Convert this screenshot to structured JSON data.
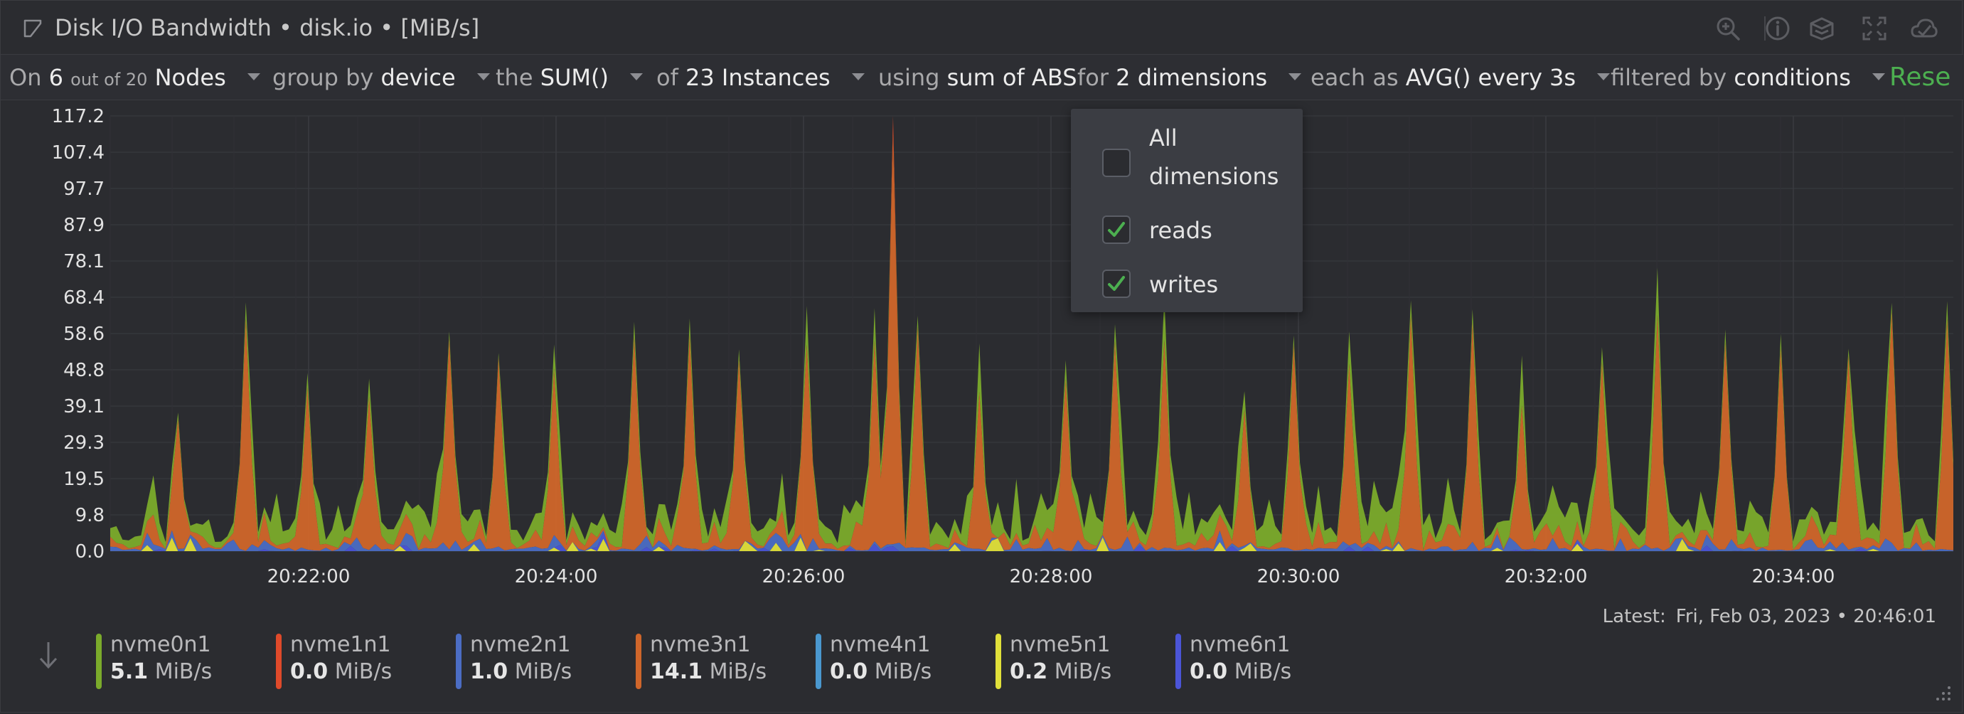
{
  "header": {
    "title": "Disk I/O Bandwidth • disk.io • [MiB/s]",
    "icons": [
      "chart-type-icon",
      "zoom-icon",
      "info-icon",
      "layers-icon",
      "fullscreen-icon",
      "cloud-icon"
    ]
  },
  "filters": {
    "nodes": {
      "prefix": "On",
      "count": "6",
      "of_label": "out of 20",
      "label": "Nodes"
    },
    "group": {
      "label": "group by",
      "value": "device"
    },
    "agg": {
      "label": "the",
      "value": "SUM()"
    },
    "instances": {
      "label": "of",
      "value": "23 Instances"
    },
    "using": {
      "label": "using",
      "value": "sum of ABS"
    },
    "dimensions": {
      "label": "for",
      "value": "2 dimensions"
    },
    "each": {
      "label": "each as",
      "value": "AVG() every 3s"
    },
    "filtered": {
      "label": "filtered by",
      "value": "conditions"
    },
    "reset_label": "Rese"
  },
  "dimensions_dropdown": {
    "options": [
      {
        "label_line1": "All",
        "label_line2": "dimensions",
        "checked": false
      },
      {
        "label": "reads",
        "checked": true
      },
      {
        "label": "writes",
        "checked": true
      }
    ]
  },
  "chart_data": {
    "type": "area",
    "stacked": true,
    "yticks": [
      "117.2",
      "107.4",
      "97.7",
      "87.9",
      "78.1",
      "68.4",
      "58.6",
      "48.8",
      "39.1",
      "29.3",
      "19.5",
      "9.8",
      "0.0"
    ],
    "ylim": [
      0,
      117.2
    ],
    "xticks": [
      "20:22:00",
      "20:24:00",
      "20:26:00",
      "20:28:00",
      "20:30:00",
      "20:32:00",
      "20:34:00"
    ],
    "grid": true,
    "series_colors": {
      "nvme0n1": "#7bab2b",
      "nvme1n1": "#df4a2a",
      "nvme2n1": "#4b6dc4",
      "nvme3n1": "#d0662a",
      "nvme4n1": "#4a98cf",
      "nvme5n1": "#e0e03a",
      "nvme6n1": "#4b55d8"
    }
  },
  "footer": {
    "latest_label": "Latest:",
    "latest_value": "Fri, Feb 03, 2023 • 20:46:01",
    "legend": [
      {
        "name": "nvme0n1",
        "value": "5.1",
        "unit": "MiB/s",
        "color": "#7bab2b"
      },
      {
        "name": "nvme1n1",
        "value": "0.0",
        "unit": "MiB/s",
        "color": "#df4a2a"
      },
      {
        "name": "nvme2n1",
        "value": "1.0",
        "unit": "MiB/s",
        "color": "#4b6dc4"
      },
      {
        "name": "nvme3n1",
        "value": "14.1",
        "unit": "MiB/s",
        "color": "#d0662a"
      },
      {
        "name": "nvme4n1",
        "value": "0.0",
        "unit": "MiB/s",
        "color": "#4a98cf"
      },
      {
        "name": "nvme5n1",
        "value": "0.2",
        "unit": "MiB/s",
        "color": "#e0e03a"
      },
      {
        "name": "nvme6n1",
        "value": "0.0",
        "unit": "MiB/s",
        "color": "#4b55d8"
      }
    ]
  }
}
